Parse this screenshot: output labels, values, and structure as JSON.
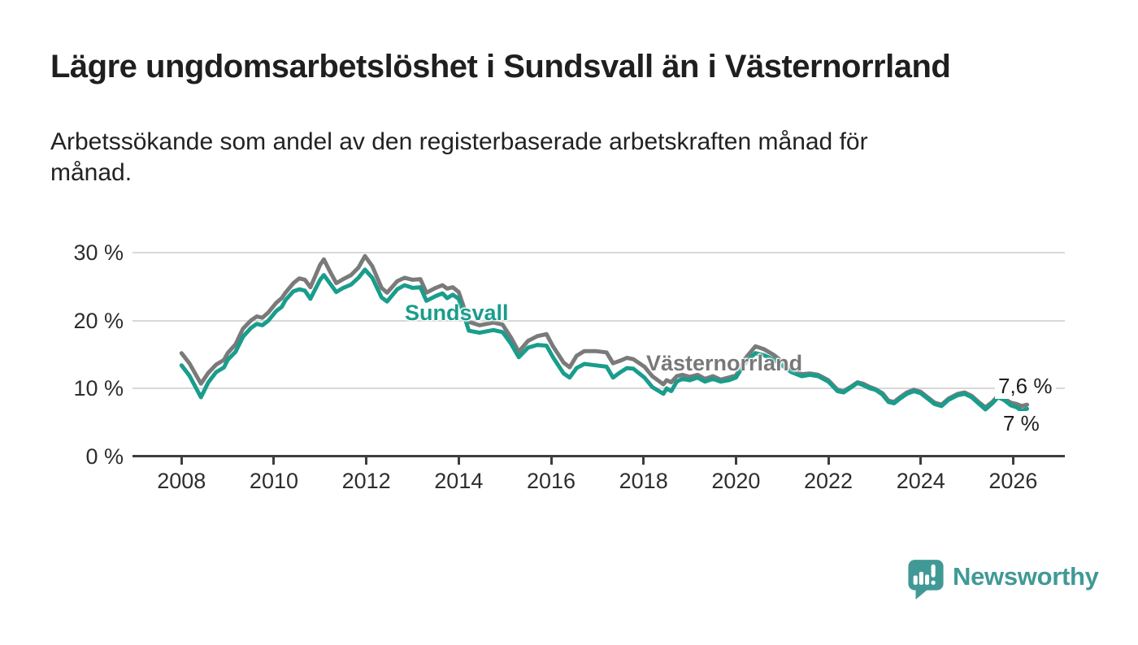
{
  "header": {
    "title": "Lägre ungdomsarbetslöshet i Sundsvall än i Västernorrland",
    "subtitle": "Arbetssökande som andel av den registerbaserade arbetskraften månad för\nmånad."
  },
  "chart": {
    "y_axis": {
      "ticks": [
        {
          "label": "30 %",
          "value": 30
        },
        {
          "label": "20 %",
          "value": 20
        },
        {
          "label": "10 %",
          "value": 10
        },
        {
          "label": "0 %",
          "value": 0
        }
      ]
    },
    "x_axis": {
      "ticks": [
        {
          "label": "2008",
          "value": 2008
        },
        {
          "label": "2010",
          "value": 2010
        },
        {
          "label": "2012",
          "value": 2012
        },
        {
          "label": "2014",
          "value": 2014
        },
        {
          "label": "2016",
          "value": 2016
        },
        {
          "label": "2018",
          "value": 2018
        },
        {
          "label": "2020",
          "value": 2020
        },
        {
          "label": "2022",
          "value": 2022
        },
        {
          "label": "2024",
          "value": 2024
        },
        {
          "label": "2026",
          "value": 2026
        }
      ]
    },
    "series_labels": {
      "sundsvall": "Sundsvall",
      "vasternorrland": "Västernorrland"
    },
    "end_labels": {
      "vasternorrland": "7,6 %",
      "sundsvall": "7 %"
    },
    "colors": {
      "sundsvall": "#199d8c",
      "vasternorrland": "#7a7a7a",
      "gridline": "#d8d8d8",
      "axis": "#3d3d3d",
      "brand": "#419996"
    }
  },
  "chart_data": {
    "type": "line",
    "title": "Lägre ungdomsarbetslöshet i Sundsvall än i Västernorrland",
    "subtitle": "Arbetssökande som andel av den registerbaserade arbetskraften månad för månad.",
    "unit": "%",
    "xlabel": "",
    "ylabel": "",
    "x_range": [
      2008,
      2026.4
    ],
    "ylim": [
      0,
      32
    ],
    "y_ticks": [
      0,
      10,
      20,
      30
    ],
    "x_ticks": [
      2008,
      2010,
      2012,
      2014,
      2016,
      2018,
      2020,
      2022,
      2024,
      2026
    ],
    "grid": "horizontal",
    "legend_position": "inline-labels",
    "series": [
      {
        "name": "Västernorrland",
        "color": "#7a7a7a",
        "end_label": "7,6 %",
        "last_value": 7.6,
        "points": [
          [
            2008.0,
            15.2
          ],
          [
            2008.17,
            13.7
          ],
          [
            2008.42,
            10.7
          ],
          [
            2008.58,
            12.3
          ],
          [
            2008.75,
            13.5
          ],
          [
            2008.92,
            14.2
          ],
          [
            2009.0,
            15.2
          ],
          [
            2009.17,
            16.5
          ],
          [
            2009.33,
            18.8
          ],
          [
            2009.5,
            20.0
          ],
          [
            2009.63,
            20.6
          ],
          [
            2009.75,
            20.4
          ],
          [
            2009.88,
            21.2
          ],
          [
            2010.05,
            22.6
          ],
          [
            2010.17,
            23.3
          ],
          [
            2010.25,
            24.1
          ],
          [
            2010.42,
            25.5
          ],
          [
            2010.55,
            26.2
          ],
          [
            2010.67,
            26.0
          ],
          [
            2010.79,
            24.9
          ],
          [
            2011.0,
            28.2
          ],
          [
            2011.08,
            29.0
          ],
          [
            2011.2,
            27.4
          ],
          [
            2011.35,
            25.5
          ],
          [
            2011.5,
            26.1
          ],
          [
            2011.67,
            26.7
          ],
          [
            2011.83,
            27.8
          ],
          [
            2011.97,
            29.5
          ],
          [
            2012.13,
            28.0
          ],
          [
            2012.33,
            24.8
          ],
          [
            2012.45,
            24.1
          ],
          [
            2012.67,
            25.8
          ],
          [
            2012.83,
            26.3
          ],
          [
            2013.0,
            26.0
          ],
          [
            2013.17,
            26.1
          ],
          [
            2013.3,
            24.1
          ],
          [
            2013.5,
            24.8
          ],
          [
            2013.65,
            25.2
          ],
          [
            2013.75,
            24.7
          ],
          [
            2013.87,
            24.9
          ],
          [
            2014.0,
            24.2
          ],
          [
            2014.22,
            19.8
          ],
          [
            2014.45,
            19.3
          ],
          [
            2014.75,
            19.7
          ],
          [
            2014.95,
            19.4
          ],
          [
            2015.13,
            17.5
          ],
          [
            2015.3,
            15.4
          ],
          [
            2015.5,
            17.0
          ],
          [
            2015.7,
            17.7
          ],
          [
            2015.9,
            18.0
          ],
          [
            2016.04,
            16.2
          ],
          [
            2016.27,
            13.8
          ],
          [
            2016.4,
            13.1
          ],
          [
            2016.55,
            14.8
          ],
          [
            2016.72,
            15.5
          ],
          [
            2016.96,
            15.5
          ],
          [
            2017.2,
            15.3
          ],
          [
            2017.34,
            13.7
          ],
          [
            2017.5,
            14.1
          ],
          [
            2017.64,
            14.5
          ],
          [
            2017.78,
            14.3
          ],
          [
            2018.02,
            13.2
          ],
          [
            2018.19,
            11.8
          ],
          [
            2018.43,
            10.6
          ],
          [
            2018.5,
            11.2
          ],
          [
            2018.6,
            10.9
          ],
          [
            2018.72,
            11.8
          ],
          [
            2018.84,
            12.0
          ],
          [
            2019.0,
            11.7
          ],
          [
            2019.17,
            12.0
          ],
          [
            2019.33,
            11.4
          ],
          [
            2019.5,
            11.8
          ],
          [
            2019.67,
            11.3
          ],
          [
            2019.84,
            11.6
          ],
          [
            2020.0,
            11.9
          ],
          [
            2020.2,
            14.4
          ],
          [
            2020.42,
            16.2
          ],
          [
            2020.6,
            15.8
          ],
          [
            2020.8,
            15.0
          ],
          [
            2021.0,
            14.0
          ],
          [
            2021.2,
            12.9
          ],
          [
            2021.42,
            12.1
          ],
          [
            2021.6,
            12.2
          ],
          [
            2021.78,
            12.0
          ],
          [
            2022.0,
            11.2
          ],
          [
            2022.2,
            9.8
          ],
          [
            2022.33,
            9.6
          ],
          [
            2022.5,
            10.3
          ],
          [
            2022.63,
            10.9
          ],
          [
            2022.75,
            10.7
          ],
          [
            2022.9,
            10.2
          ],
          [
            2023.02,
            9.9
          ],
          [
            2023.17,
            9.3
          ],
          [
            2023.3,
            8.2
          ],
          [
            2023.42,
            8.0
          ],
          [
            2023.55,
            8.7
          ],
          [
            2023.7,
            9.4
          ],
          [
            2023.85,
            9.8
          ],
          [
            2024.0,
            9.5
          ],
          [
            2024.13,
            8.8
          ],
          [
            2024.3,
            7.9
          ],
          [
            2024.45,
            7.6
          ],
          [
            2024.6,
            8.5
          ],
          [
            2024.8,
            9.2
          ],
          [
            2024.95,
            9.4
          ],
          [
            2025.1,
            8.9
          ],
          [
            2025.25,
            8.0
          ],
          [
            2025.4,
            7.2
          ],
          [
            2025.55,
            8.0
          ],
          [
            2025.67,
            8.9
          ],
          [
            2025.8,
            8.5
          ],
          [
            2025.95,
            7.9
          ],
          [
            2026.08,
            7.7
          ],
          [
            2026.18,
            7.4
          ],
          [
            2026.3,
            7.6
          ]
        ]
      },
      {
        "name": "Sundsvall",
        "color": "#199d8c",
        "end_label": "7 %",
        "last_value": 7.0,
        "points": [
          [
            2008.0,
            13.4
          ],
          [
            2008.17,
            11.9
          ],
          [
            2008.42,
            8.7
          ],
          [
            2008.58,
            10.9
          ],
          [
            2008.75,
            12.4
          ],
          [
            2008.92,
            13.1
          ],
          [
            2009.0,
            14.2
          ],
          [
            2009.17,
            15.4
          ],
          [
            2009.33,
            17.6
          ],
          [
            2009.5,
            18.9
          ],
          [
            2009.63,
            19.5
          ],
          [
            2009.75,
            19.3
          ],
          [
            2009.88,
            20.0
          ],
          [
            2010.05,
            21.4
          ],
          [
            2010.17,
            22.0
          ],
          [
            2010.25,
            23.0
          ],
          [
            2010.42,
            24.3
          ],
          [
            2010.55,
            24.6
          ],
          [
            2010.67,
            24.4
          ],
          [
            2010.79,
            23.2
          ],
          [
            2011.0,
            26.0
          ],
          [
            2011.08,
            26.7
          ],
          [
            2011.2,
            25.6
          ],
          [
            2011.35,
            24.2
          ],
          [
            2011.5,
            24.8
          ],
          [
            2011.67,
            25.3
          ],
          [
            2011.83,
            26.3
          ],
          [
            2011.97,
            27.5
          ],
          [
            2012.13,
            26.3
          ],
          [
            2012.33,
            23.4
          ],
          [
            2012.45,
            22.8
          ],
          [
            2012.67,
            24.6
          ],
          [
            2012.83,
            25.2
          ],
          [
            2013.0,
            24.8
          ],
          [
            2013.17,
            24.9
          ],
          [
            2013.3,
            22.9
          ],
          [
            2013.5,
            23.6
          ],
          [
            2013.65,
            24.0
          ],
          [
            2013.75,
            23.3
          ],
          [
            2013.87,
            23.8
          ],
          [
            2014.0,
            23.2
          ],
          [
            2014.22,
            18.5
          ],
          [
            2014.45,
            18.2
          ],
          [
            2014.75,
            18.6
          ],
          [
            2014.95,
            18.3
          ],
          [
            2015.13,
            16.6
          ],
          [
            2015.3,
            14.6
          ],
          [
            2015.5,
            16.0
          ],
          [
            2015.7,
            16.4
          ],
          [
            2015.9,
            16.3
          ],
          [
            2016.04,
            14.6
          ],
          [
            2016.27,
            12.2
          ],
          [
            2016.4,
            11.6
          ],
          [
            2016.55,
            13.0
          ],
          [
            2016.72,
            13.6
          ],
          [
            2016.96,
            13.4
          ],
          [
            2017.2,
            13.2
          ],
          [
            2017.34,
            11.6
          ],
          [
            2017.5,
            12.4
          ],
          [
            2017.64,
            13.0
          ],
          [
            2017.78,
            12.9
          ],
          [
            2018.02,
            11.6
          ],
          [
            2018.19,
            10.2
          ],
          [
            2018.43,
            9.2
          ],
          [
            2018.5,
            10.0
          ],
          [
            2018.6,
            9.6
          ],
          [
            2018.72,
            11.0
          ],
          [
            2018.84,
            11.4
          ],
          [
            2019.0,
            11.2
          ],
          [
            2019.17,
            11.6
          ],
          [
            2019.33,
            11.0
          ],
          [
            2019.5,
            11.4
          ],
          [
            2019.67,
            11.0
          ],
          [
            2019.84,
            11.2
          ],
          [
            2020.0,
            11.6
          ],
          [
            2020.2,
            13.8
          ],
          [
            2020.42,
            15.2
          ],
          [
            2020.6,
            14.9
          ],
          [
            2020.8,
            14.3
          ],
          [
            2021.0,
            13.4
          ],
          [
            2021.2,
            12.4
          ],
          [
            2021.42,
            11.8
          ],
          [
            2021.6,
            12.0
          ],
          [
            2021.78,
            11.8
          ],
          [
            2022.0,
            11.0
          ],
          [
            2022.2,
            9.6
          ],
          [
            2022.33,
            9.4
          ],
          [
            2022.5,
            10.2
          ],
          [
            2022.63,
            10.8
          ],
          [
            2022.75,
            10.5
          ],
          [
            2022.9,
            10.0
          ],
          [
            2023.02,
            9.8
          ],
          [
            2023.17,
            9.1
          ],
          [
            2023.3,
            8.0
          ],
          [
            2023.42,
            7.8
          ],
          [
            2023.55,
            8.5
          ],
          [
            2023.7,
            9.2
          ],
          [
            2023.85,
            9.6
          ],
          [
            2024.0,
            9.3
          ],
          [
            2024.13,
            8.6
          ],
          [
            2024.3,
            7.7
          ],
          [
            2024.45,
            7.4
          ],
          [
            2024.6,
            8.3
          ],
          [
            2024.8,
            9.0
          ],
          [
            2024.95,
            9.2
          ],
          [
            2025.1,
            8.7
          ],
          [
            2025.25,
            7.8
          ],
          [
            2025.4,
            6.9
          ],
          [
            2025.55,
            7.8
          ],
          [
            2025.67,
            8.7
          ],
          [
            2025.8,
            8.3
          ],
          [
            2025.95,
            7.5
          ],
          [
            2026.08,
            7.2
          ],
          [
            2026.18,
            6.7
          ],
          [
            2026.3,
            7.0
          ]
        ]
      }
    ]
  },
  "footer": {
    "brand": "Newsworthy"
  }
}
